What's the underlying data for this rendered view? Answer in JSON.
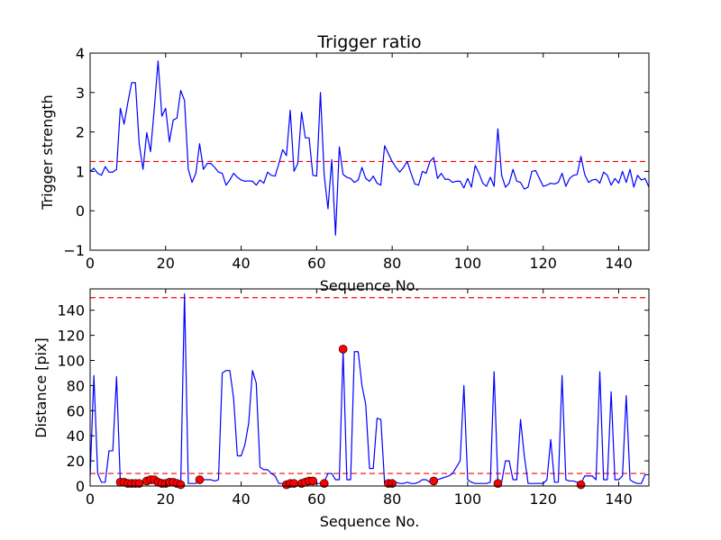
{
  "chart_data": [
    {
      "type": "line",
      "title": "Trigger ratio",
      "xlabel": "Sequence No.",
      "ylabel": "Trigger strength",
      "xlim": [
        0,
        148
      ],
      "ylim": [
        -1,
        4
      ],
      "xticks": [
        0,
        20,
        40,
        60,
        80,
        100,
        120,
        140
      ],
      "yticks": [
        -1,
        0,
        1,
        2,
        3,
        4
      ],
      "threshold": 1.25,
      "series": [
        {
          "color": "#0000ff",
          "x": [
            0,
            1,
            2,
            3,
            4,
            5,
            6,
            7,
            8,
            9,
            10,
            11,
            12,
            13,
            14,
            15,
            16,
            17,
            18,
            19,
            20,
            21,
            22,
            23,
            24,
            25,
            26,
            27,
            28,
            29,
            30,
            31,
            32,
            33,
            34,
            35,
            36,
            37,
            38,
            39,
            40,
            41,
            42,
            43,
            44,
            45,
            46,
            47,
            48,
            49,
            50,
            51,
            52,
            53,
            54,
            55,
            56,
            57,
            58,
            59,
            60,
            61,
            62,
            63,
            64,
            65,
            66,
            67,
            68,
            69,
            70,
            71,
            72,
            73,
            74,
            75,
            76,
            77,
            78,
            79,
            80,
            81,
            82,
            83,
            84,
            85,
            86,
            87,
            88,
            89,
            90,
            91,
            92,
            93,
            94,
            95,
            96,
            97,
            98,
            99,
            100,
            101,
            102,
            103,
            104,
            105,
            106,
            107,
            108,
            109,
            110,
            111,
            112,
            113,
            114,
            115,
            116,
            117,
            118,
            119,
            120,
            121,
            122,
            123,
            124,
            125,
            126,
            127,
            128,
            129,
            130,
            131,
            132,
            133,
            134,
            135,
            136,
            137,
            138,
            139,
            140,
            141,
            142,
            143,
            144,
            145,
            146,
            147,
            148
          ],
          "values": [
            1.0,
            1.08,
            0.95,
            0.9,
            1.12,
            0.98,
            0.98,
            1.05,
            2.6,
            2.2,
            2.75,
            3.25,
            3.25,
            1.7,
            1.05,
            1.98,
            1.5,
            2.6,
            3.8,
            2.4,
            2.6,
            1.75,
            2.3,
            2.35,
            3.05,
            2.8,
            1.05,
            0.72,
            0.95,
            1.7,
            1.05,
            1.2,
            1.2,
            1.1,
            0.98,
            0.95,
            0.65,
            0.78,
            0.95,
            0.85,
            0.78,
            0.75,
            0.76,
            0.75,
            0.65,
            0.78,
            0.7,
            0.98,
            0.9,
            0.88,
            1.2,
            1.55,
            1.4,
            2.55,
            1.0,
            1.2,
            2.5,
            1.85,
            1.85,
            0.9,
            0.88,
            3.0,
            0.9,
            0.05,
            1.3,
            -0.62,
            1.62,
            0.92,
            0.85,
            0.82,
            0.72,
            0.78,
            1.1,
            0.82,
            0.75,
            0.88,
            0.7,
            0.65,
            1.65,
            1.45,
            1.25,
            1.1,
            0.98,
            1.1,
            1.25,
            0.95,
            0.68,
            0.65,
            1.0,
            0.95,
            1.25,
            1.35,
            0.82,
            0.95,
            0.8,
            0.8,
            0.72,
            0.75,
            0.75,
            0.58,
            0.82,
            0.6,
            1.15,
            0.95,
            0.7,
            0.62,
            0.85,
            0.62,
            2.08,
            0.9,
            0.6,
            0.7,
            1.05,
            0.75,
            0.72,
            0.55,
            0.6,
            1.0,
            1.02,
            0.82,
            0.62,
            0.65,
            0.7,
            0.68,
            0.72,
            0.95,
            0.62,
            0.82,
            0.9,
            0.92,
            1.38,
            0.92,
            0.72,
            0.78,
            0.8,
            0.7,
            0.98,
            0.9,
            0.65,
            0.82,
            0.7,
            1.0,
            0.72,
            1.05,
            0.6,
            0.9,
            0.78,
            0.82,
            0.6
          ]
        }
      ]
    },
    {
      "type": "line",
      "title": "",
      "xlabel": "Sequence No.",
      "ylabel": "Distance [pix]",
      "xlim": [
        0,
        148
      ],
      "ylim": [
        0,
        157
      ],
      "xticks": [
        0,
        20,
        40,
        60,
        80,
        100,
        120,
        140
      ],
      "yticks": [
        0,
        20,
        40,
        60,
        80,
        100,
        120,
        140
      ],
      "thresholds": [
        150,
        10
      ],
      "series": [
        {
          "color": "#0000ff",
          "x": [
            0,
            1,
            2,
            3,
            4,
            5,
            6,
            7,
            8,
            9,
            10,
            11,
            12,
            13,
            14,
            15,
            16,
            17,
            18,
            19,
            20,
            21,
            22,
            23,
            24,
            25,
            26,
            27,
            28,
            29,
            30,
            31,
            32,
            33,
            34,
            35,
            36,
            37,
            38,
            39,
            40,
            41,
            42,
            43,
            44,
            45,
            46,
            47,
            48,
            49,
            50,
            51,
            52,
            53,
            54,
            55,
            56,
            57,
            58,
            59,
            60,
            61,
            62,
            63,
            64,
            65,
            66,
            67,
            68,
            69,
            70,
            71,
            72,
            73,
            74,
            75,
            76,
            77,
            78,
            79,
            80,
            81,
            82,
            83,
            84,
            85,
            86,
            87,
            88,
            89,
            90,
            91,
            92,
            93,
            94,
            95,
            96,
            97,
            98,
            99,
            100,
            101,
            102,
            103,
            104,
            105,
            106,
            107,
            108,
            109,
            110,
            111,
            112,
            113,
            114,
            115,
            116,
            117,
            118,
            119,
            120,
            121,
            122,
            123,
            124,
            125,
            126,
            127,
            128,
            129,
            130,
            131,
            132,
            133,
            134,
            135,
            136,
            137,
            138,
            139,
            140,
            141,
            142,
            143,
            144,
            145,
            146,
            147,
            148
          ],
          "values": [
            8,
            88,
            10,
            3,
            3,
            28,
            28,
            87,
            3,
            3,
            2,
            2,
            2,
            3,
            4,
            5,
            6,
            5,
            3,
            2,
            2,
            3,
            3,
            2,
            2,
            153,
            2,
            2,
            2,
            5,
            5,
            5,
            5,
            4,
            5,
            90,
            92,
            92,
            70,
            24,
            24,
            33,
            50,
            92,
            82,
            15,
            13,
            13,
            10,
            8,
            2,
            2,
            2,
            3,
            2,
            3,
            3,
            4,
            4,
            3,
            2,
            2,
            3,
            10,
            10,
            5,
            5,
            108,
            5,
            5,
            107,
            107,
            80,
            65,
            14,
            14,
            54,
            53,
            2,
            2,
            3,
            3,
            2,
            2,
            3,
            2,
            2,
            3,
            5,
            5,
            3,
            4,
            5,
            6,
            7,
            8,
            10,
            15,
            20,
            80,
            5,
            3,
            2,
            2,
            2,
            2,
            3,
            91,
            3,
            3,
            20,
            20,
            5,
            5,
            53,
            24,
            2,
            2,
            2,
            2,
            2,
            5,
            37,
            3,
            3,
            88,
            5,
            4,
            4,
            3,
            2,
            8,
            8,
            8,
            5,
            91,
            5,
            5,
            75,
            5,
            5,
            8,
            72,
            5,
            3,
            2,
            2,
            9,
            9
          ]
        },
        {
          "name": "",
          "type": "scatter",
          "color": "#ff0000",
          "x": [
            8,
            9,
            10,
            11,
            12,
            13,
            15,
            16,
            17,
            18,
            19,
            20,
            21,
            22,
            23,
            24,
            29,
            52,
            53,
            54,
            56,
            57,
            58,
            59,
            62,
            67,
            79,
            80,
            91,
            108,
            130
          ],
          "values": [
            3,
            3,
            2,
            2,
            2,
            2,
            4,
            5,
            5,
            3,
            2,
            2,
            3,
            3,
            2,
            1,
            5,
            1,
            2,
            2,
            2,
            3,
            4,
            4,
            2,
            109,
            2,
            2,
            4,
            2,
            1
          ]
        }
      ]
    }
  ]
}
